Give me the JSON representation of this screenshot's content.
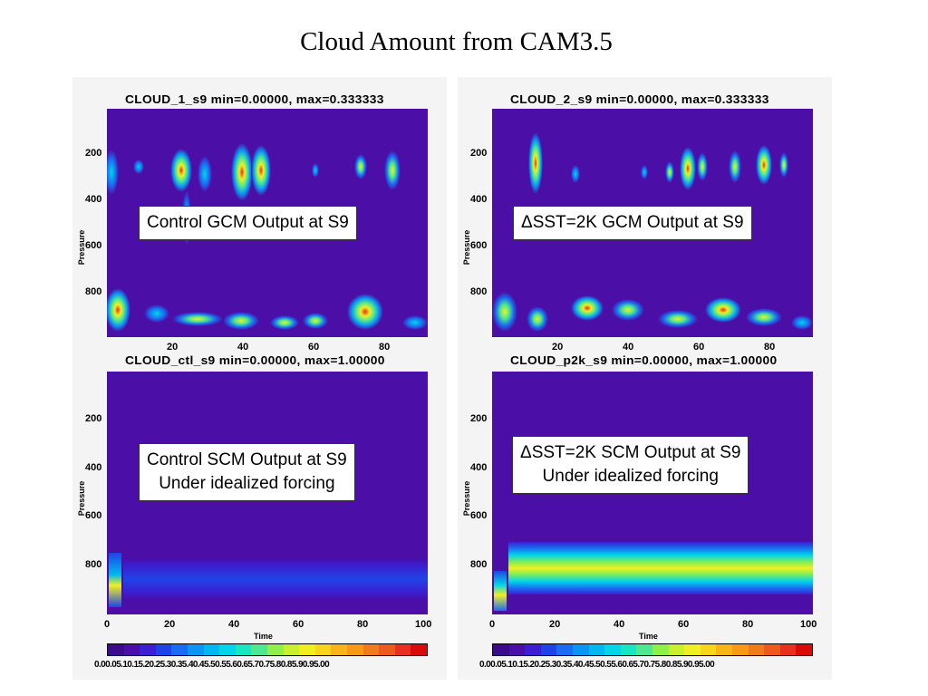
{
  "slide": {
    "title": "Cloud Amount from CAM3.5"
  },
  "colors": {
    "background_field": "#4b0ea6",
    "colorbar": [
      "#3d0a8c",
      "#4b0ea6",
      "#3b1fd0",
      "#1f44e6",
      "#1a6cf2",
      "#0a95f5",
      "#00b7f0",
      "#00d6e8",
      "#18e6c0",
      "#4fe890",
      "#8ff04a",
      "#c8f02e",
      "#f0ef22",
      "#f8d41c",
      "#f8b418",
      "#f89a18",
      "#f07a1c",
      "#ec5a1e",
      "#e83020",
      "#d80a0a"
    ]
  },
  "colorbar_labels": "0.00.05.10.15.20.25.30.35.40.45.50.55.60.65.70.75.80.85.90.95.00",
  "chart_data": [
    {
      "type": "heatmap",
      "title": "CLOUD_1_s9  min=0.00000,  max=0.333333",
      "ylabel": "Pressure",
      "xlabel": "",
      "x_ticks": [
        "20",
        "40",
        "60",
        "80"
      ],
      "y_ticks": [
        "200",
        "400",
        "600",
        "800"
      ],
      "ylim": [
        1000,
        0
      ],
      "annotation": "Control GCM Output at S9"
    },
    {
      "type": "heatmap",
      "title": "CLOUD_2_s9  min=0.00000,  max=0.333333",
      "ylabel": "Pressure",
      "xlabel": "",
      "x_ticks": [
        "20",
        "40",
        "60",
        "80"
      ],
      "y_ticks": [
        "200",
        "400",
        "600",
        "800"
      ],
      "ylim": [
        1000,
        0
      ],
      "annotation": "ΔSST=2K GCM Output at S9"
    },
    {
      "type": "heatmap",
      "title": "CLOUD_ctl_s9  min=0.00000,  max=1.00000",
      "ylabel": "Pressure",
      "xlabel": "Time",
      "x_ticks": [
        "0",
        "20",
        "40",
        "60",
        "80",
        "100"
      ],
      "y_ticks": [
        "200",
        "400",
        "600",
        "800"
      ],
      "xlim": [
        0,
        100
      ],
      "ylim": [
        1000,
        0
      ],
      "annotation_lines": [
        "Control SCM Output at S9",
        "Under idealized forcing"
      ]
    },
    {
      "type": "heatmap",
      "title": "CLOUD_p2k_s9  min=0.00000,  max=1.00000",
      "ylabel": "Pressure",
      "xlabel": "Time",
      "x_ticks": [
        "0",
        "20",
        "40",
        "60",
        "80",
        "100"
      ],
      "y_ticks": [
        "200",
        "400",
        "600",
        "800"
      ],
      "xlim": [
        0,
        100
      ],
      "ylim": [
        1000,
        0
      ],
      "annotation_lines": [
        "ΔSST=2K SCM Output at S9",
        "Under idealized forcing"
      ]
    }
  ]
}
